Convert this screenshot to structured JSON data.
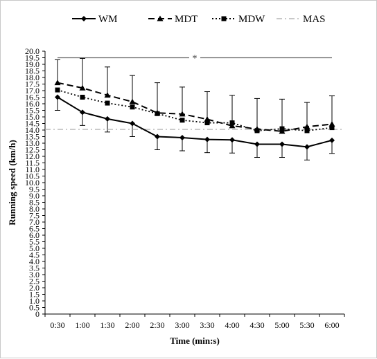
{
  "chart_data": {
    "type": "line",
    "title": "",
    "xlabel": "Time (min:s)",
    "ylabel": "Running speed (km/h)",
    "ylim": [
      0,
      20
    ],
    "ytick_step": 0.5,
    "categories": [
      "0:30",
      "1:00",
      "1:30",
      "2:00",
      "2:30",
      "3:00",
      "3:30",
      "4:00",
      "4:30",
      "5:00",
      "5:30",
      "6:00"
    ],
    "series": [
      {
        "name": "WM",
        "line": "solid",
        "marker": "diamond",
        "color": "#000000",
        "values": [
          16.5,
          15.35,
          14.85,
          14.5,
          13.5,
          13.42,
          13.28,
          13.25,
          12.92,
          12.92,
          12.72,
          13.22
        ],
        "error": [
          1.0,
          1.0,
          1.0,
          1.0,
          1.0,
          1.0,
          1.0,
          1.0,
          1.0,
          1.0,
          1.0,
          1.0
        ]
      },
      {
        "name": "MDT",
        "line": "dashed",
        "marker": "triangle",
        "color": "#000000",
        "values": [
          17.6,
          17.2,
          16.65,
          16.15,
          15.3,
          15.22,
          14.82,
          14.32,
          14.08,
          13.9,
          14.25,
          14.45
        ],
        "error": [
          1.75,
          2.25,
          2.15,
          2.0,
          2.3,
          2.05,
          2.1,
          2.32,
          2.32,
          2.45,
          1.85,
          2.15
        ]
      },
      {
        "name": "MDW",
        "line": "dotted",
        "marker": "square",
        "color": "#000000",
        "values": [
          17.05,
          16.5,
          16.05,
          15.75,
          15.25,
          14.75,
          14.55,
          14.55,
          13.95,
          14.1,
          13.95,
          14.18
        ],
        "error": []
      },
      {
        "name": "MAS",
        "line": "dashdot",
        "marker": "none",
        "color": "#a6a6a6",
        "values": [
          14.05,
          14.05,
          14.05,
          14.05,
          14.05,
          14.05,
          14.05,
          14.05,
          14.05,
          14.05,
          14.05,
          14.05
        ],
        "error": []
      }
    ],
    "annotations": [
      {
        "text": "*",
        "y": 19.5,
        "from": "0:30",
        "to": "6:00"
      }
    ],
    "legend": "top",
    "grid": false
  }
}
